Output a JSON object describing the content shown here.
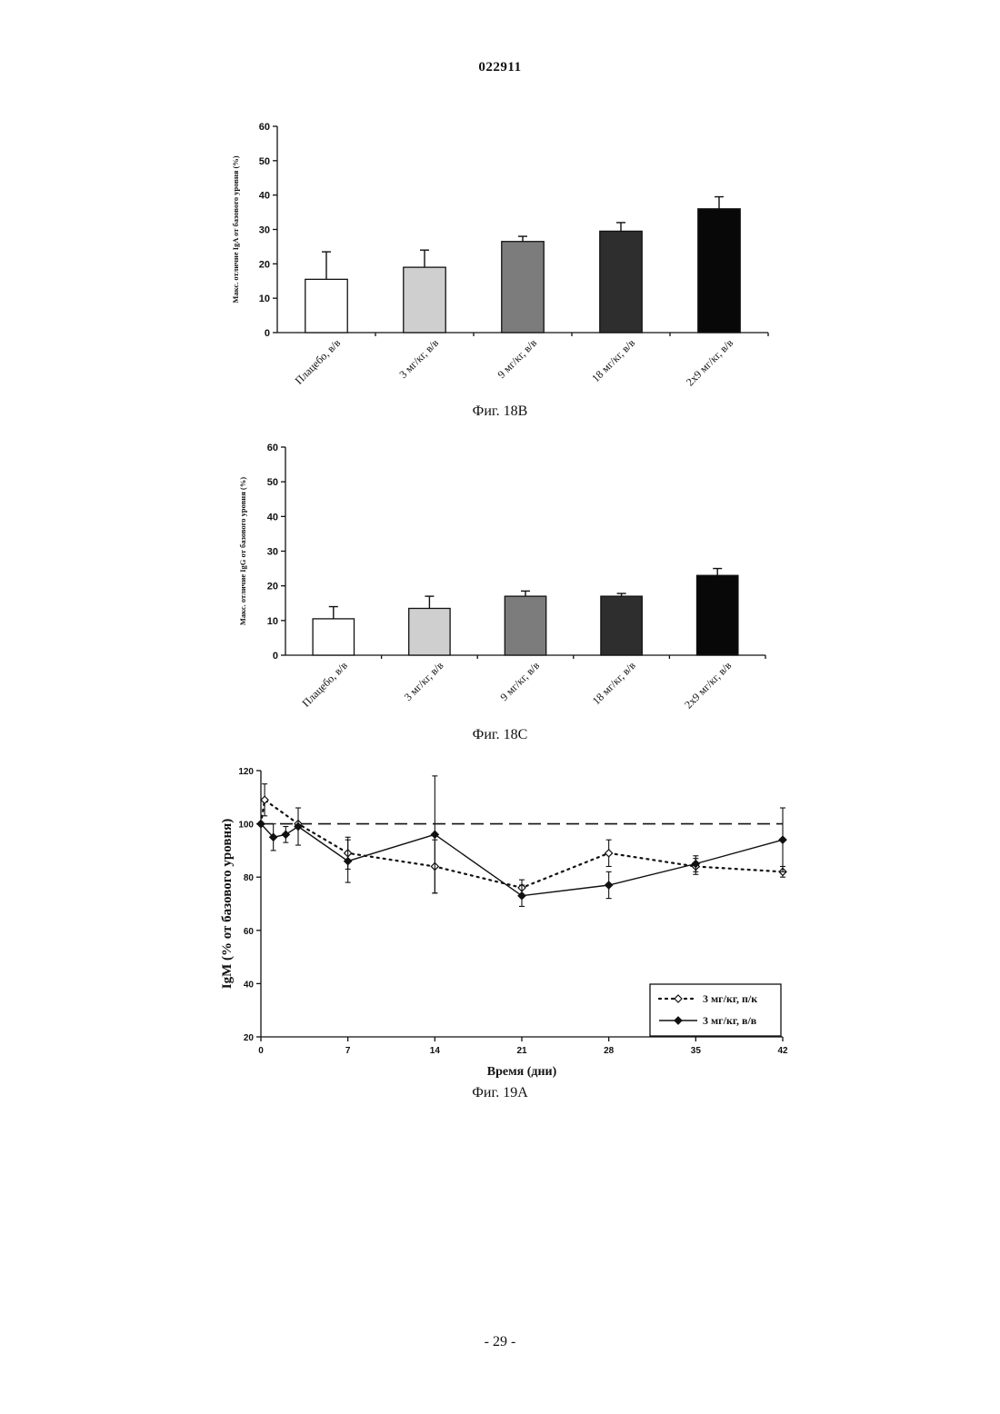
{
  "page": {
    "doc_number": "022911",
    "footer": "- 29 -"
  },
  "chart_data": [
    {
      "type": "bar",
      "caption": "Фиг. 18В",
      "ylabel": "Макс. отличие IgA от базового уровня (%)",
      "ylim": [
        0,
        60
      ],
      "yticks": [
        0,
        10,
        20,
        30,
        40,
        50,
        60
      ],
      "categories": [
        "Плацебо, в/в",
        "3 мг/кг, в/в",
        "9 мг/кг, в/в",
        "18 мг/кг, в/в",
        "2x9 мг/кг, в/в"
      ],
      "values": [
        15.5,
        19,
        26.5,
        29.5,
        36
      ],
      "errors": [
        8,
        5,
        1.5,
        2.5,
        3.5
      ],
      "fills": [
        "#ffffff",
        "#cfcfcf",
        "#7c7c7c",
        "#2e2e2e",
        "#080808"
      ]
    },
    {
      "type": "bar",
      "caption": "Фиг. 18С",
      "ylabel": "Макс. отличие IgG от базового уровня (%)",
      "ylim": [
        0,
        60
      ],
      "yticks": [
        0,
        10,
        20,
        30,
        40,
        50,
        60
      ],
      "categories": [
        "Плацебо, в/в",
        "3 мг/кг, в/в",
        "9 мг/кг, в/в",
        "18 мг/кг, в/в",
        "2x9 мг/кг, в/в"
      ],
      "values": [
        10.5,
        13.5,
        17,
        17,
        23
      ],
      "errors": [
        3.5,
        3.5,
        1.5,
        0.8,
        2
      ],
      "fills": [
        "#ffffff",
        "#cfcfcf",
        "#7c7c7c",
        "#2e2e2e",
        "#080808"
      ]
    },
    {
      "type": "line",
      "caption": "Фиг. 19А",
      "xlabel": "Время (дни)",
      "ylabel": "IgM (% от базового уровня)",
      "xlim": [
        0,
        42
      ],
      "ylim": [
        20,
        120
      ],
      "xticks": [
        0,
        7,
        14,
        21,
        28,
        35,
        42
      ],
      "yticks": [
        20,
        40,
        60,
        80,
        100,
        120
      ],
      "reference_line": 100,
      "series": [
        {
          "name": "3 мг/кг, п/к",
          "style": "dotted",
          "marker": "open-diamond",
          "x": [
            0,
            0.3,
            3,
            7,
            14,
            21,
            28,
            35,
            42
          ],
          "y": [
            100,
            109,
            100,
            89,
            84,
            76,
            89,
            84,
            82
          ],
          "err": [
            0,
            6,
            0,
            6,
            10,
            3,
            5,
            3,
            2
          ]
        },
        {
          "name": "3 мг/кг, в/в",
          "style": "solid",
          "marker": "filled-diamond",
          "x": [
            0,
            1,
            2,
            3,
            7,
            14,
            21,
            28,
            35,
            42
          ],
          "y": [
            100,
            95,
            96,
            99,
            86,
            96,
            73,
            77,
            85,
            94
          ],
          "err": [
            0,
            5,
            3,
            7,
            8,
            22,
            4,
            5,
            3,
            12
          ]
        }
      ]
    }
  ]
}
